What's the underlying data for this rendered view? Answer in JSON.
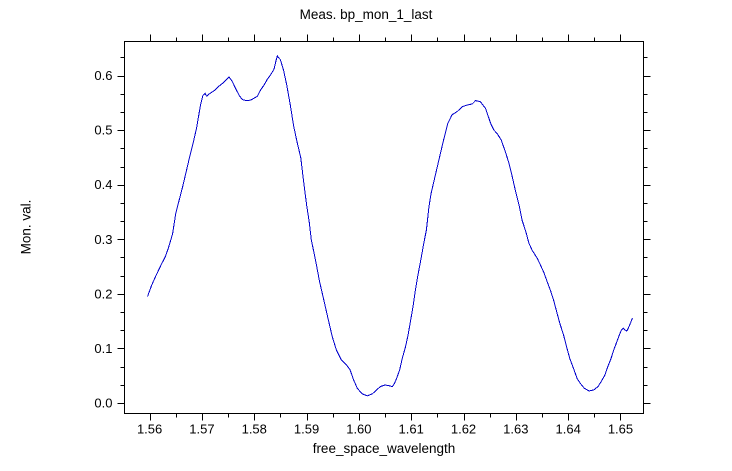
{
  "window": {
    "background": "#ffffff"
  },
  "chart_data": {
    "type": "line",
    "title": "Meas. bp_mon_1_last",
    "xlabel": "free_space_wavelength",
    "ylabel": "Mon. val.",
    "grid": false,
    "legend": "none",
    "frame": true,
    "tick_direction": "out",
    "axis_color": "#000000",
    "text_color": "#000000",
    "xlim": [
      1.5552,
      1.6544
    ],
    "ylim": [
      -0.0192,
      0.6623
    ],
    "x_major_ticks": [
      1.56,
      1.57,
      1.58,
      1.59,
      1.6,
      1.61,
      1.62,
      1.63,
      1.64,
      1.65
    ],
    "x_tick_labels": [
      "1.56",
      "1.57",
      "1.58",
      "1.59",
      "1.60",
      "1.61",
      "1.62",
      "1.63",
      "1.64",
      "1.65"
    ],
    "x_minor_ticks": [
      1.565,
      1.575,
      1.585,
      1.595,
      1.605,
      1.615,
      1.625,
      1.635,
      1.645
    ],
    "y_major_ticks": [
      0.0,
      0.1,
      0.2,
      0.3,
      0.4,
      0.5,
      0.6
    ],
    "y_tick_labels": [
      "0.0",
      "0.1",
      "0.2",
      "0.3",
      "0.4",
      "0.5",
      "0.6"
    ],
    "y_minor_ticks": [
      0.0333,
      0.0667,
      0.1333,
      0.1667,
      0.2333,
      0.2667,
      0.3333,
      0.3667,
      0.4333,
      0.4667,
      0.5333,
      0.5667,
      0.6333
    ],
    "series": [
      {
        "name": "bp_mon_1_last",
        "color": "#0000cc",
        "line_width": 1,
        "x": [
          1.5596,
          1.5604,
          1.5613,
          1.5622,
          1.563,
          1.5636,
          1.5644,
          1.565,
          1.5663,
          1.5675,
          1.5683,
          1.569,
          1.5697,
          1.5702,
          1.5706,
          1.5709,
          1.5715,
          1.5723,
          1.5732,
          1.574,
          1.5747,
          1.5752,
          1.5758,
          1.5764,
          1.5771,
          1.5777,
          1.5785,
          1.5793,
          1.5799,
          1.5806,
          1.5812,
          1.5819,
          1.5825,
          1.5831,
          1.5838,
          1.5841,
          1.5844,
          1.5847,
          1.585,
          1.5856,
          1.5862,
          1.5869,
          1.5875,
          1.5881,
          1.5889,
          1.5894,
          1.59,
          1.5905,
          1.5909,
          1.5917,
          1.5925,
          1.5933,
          1.5941,
          1.5949,
          1.5957,
          1.5966,
          1.5976,
          1.5983,
          1.599,
          1.5997,
          1.6006,
          1.6016,
          1.6026,
          1.6034,
          1.6041,
          1.605,
          1.6057,
          1.6064,
          1.6068,
          1.6072,
          1.6078,
          1.6083,
          1.6089,
          1.6094,
          1.6099,
          1.6104,
          1.6108,
          1.6113,
          1.6119,
          1.6124,
          1.6129,
          1.6134,
          1.6138,
          1.6147,
          1.6155,
          1.6162,
          1.617,
          1.6178,
          1.6188,
          1.6198,
          1.6207,
          1.6217,
          1.6223,
          1.6232,
          1.6242,
          1.6252,
          1.6258,
          1.6264,
          1.6272,
          1.628,
          1.6287,
          1.6293,
          1.6299,
          1.6306,
          1.6312,
          1.6319,
          1.6325,
          1.6331,
          1.6341,
          1.6347,
          1.6354,
          1.636,
          1.6367,
          1.6373,
          1.6378,
          1.6384,
          1.6391,
          1.6397,
          1.6403,
          1.641,
          1.6417,
          1.6424,
          1.6431,
          1.644,
          1.6449,
          1.6457,
          1.6463,
          1.647,
          1.6476,
          1.6482,
          1.6487,
          1.6493,
          1.6498,
          1.6502,
          1.6505,
          1.6508,
          1.6512,
          1.6515,
          1.6519,
          1.6523
        ],
        "y": [
          0.195,
          0.216,
          0.235,
          0.253,
          0.268,
          0.284,
          0.31,
          0.348,
          0.396,
          0.445,
          0.475,
          0.505,
          0.545,
          0.564,
          0.567,
          0.562,
          0.567,
          0.572,
          0.58,
          0.586,
          0.593,
          0.597,
          0.589,
          0.577,
          0.564,
          0.556,
          0.554,
          0.555,
          0.558,
          0.562,
          0.573,
          0.583,
          0.593,
          0.601,
          0.612,
          0.625,
          0.636,
          0.632,
          0.629,
          0.61,
          0.583,
          0.546,
          0.509,
          0.482,
          0.449,
          0.409,
          0.363,
          0.332,
          0.299,
          0.262,
          0.222,
          0.189,
          0.155,
          0.122,
          0.097,
          0.08,
          0.07,
          0.061,
          0.042,
          0.027,
          0.017,
          0.013,
          0.017,
          0.024,
          0.03,
          0.033,
          0.032,
          0.03,
          0.036,
          0.045,
          0.061,
          0.082,
          0.103,
          0.125,
          0.152,
          0.18,
          0.207,
          0.235,
          0.265,
          0.293,
          0.317,
          0.36,
          0.384,
          0.421,
          0.454,
          0.482,
          0.512,
          0.528,
          0.534,
          0.543,
          0.546,
          0.548,
          0.554,
          0.552,
          0.54,
          0.512,
          0.5,
          0.494,
          0.482,
          0.46,
          0.439,
          0.415,
          0.39,
          0.363,
          0.335,
          0.314,
          0.293,
          0.28,
          0.265,
          0.253,
          0.238,
          0.222,
          0.204,
          0.186,
          0.167,
          0.146,
          0.125,
          0.103,
          0.082,
          0.064,
          0.045,
          0.035,
          0.027,
          0.022,
          0.024,
          0.03,
          0.039,
          0.051,
          0.067,
          0.082,
          0.097,
          0.112,
          0.125,
          0.134,
          0.137,
          0.134,
          0.132,
          0.137,
          0.146,
          0.156
        ]
      }
    ]
  }
}
